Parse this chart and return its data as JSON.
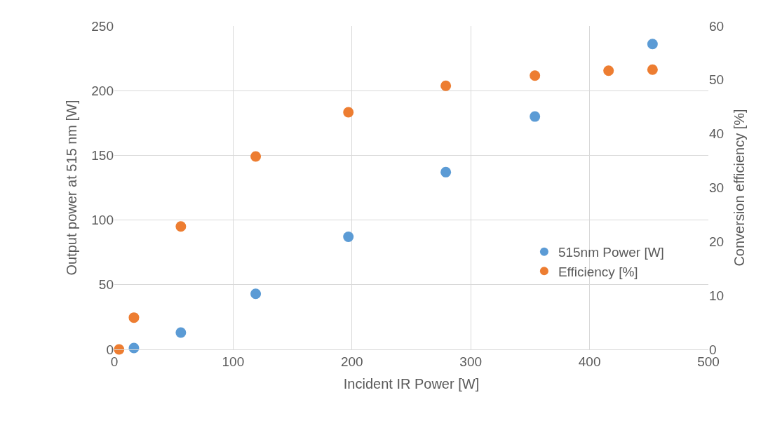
{
  "chart_data": {
    "type": "scatter",
    "xlabel": "Incident IR Power [W]",
    "ylabel": "Output power at 515 nm [W]",
    "y2label": "Conversion efficiency [%]",
    "xlim": [
      0,
      500
    ],
    "xticks": [
      0,
      100,
      200,
      300,
      400,
      500
    ],
    "ylim": [
      0,
      250
    ],
    "yticks": [
      0,
      50,
      100,
      150,
      200,
      250
    ],
    "y2lim": [
      0,
      60
    ],
    "y2ticks": [
      0,
      10,
      20,
      30,
      40,
      50,
      60
    ],
    "grid": true,
    "legend": "bottom right",
    "marker": "circle",
    "series": [
      {
        "name": "515nm Power [W]",
        "color": "#5b9bd5",
        "x": [
          16.5,
          56,
          119,
          197,
          279,
          354,
          453
        ],
        "values": [
          1.1,
          13,
          43,
          87,
          137,
          180,
          236
        ]
      },
      {
        "name": "Efficiency [%]",
        "color": "#ed7d31",
        "axis": "y2",
        "x": [
          4,
          16.5,
          56,
          119,
          197,
          279,
          354,
          416,
          453
        ],
        "values": [
          0,
          5.9,
          22.8,
          35.8,
          44,
          48.9,
          50.8,
          51.7,
          51.9
        ]
      }
    ]
  }
}
